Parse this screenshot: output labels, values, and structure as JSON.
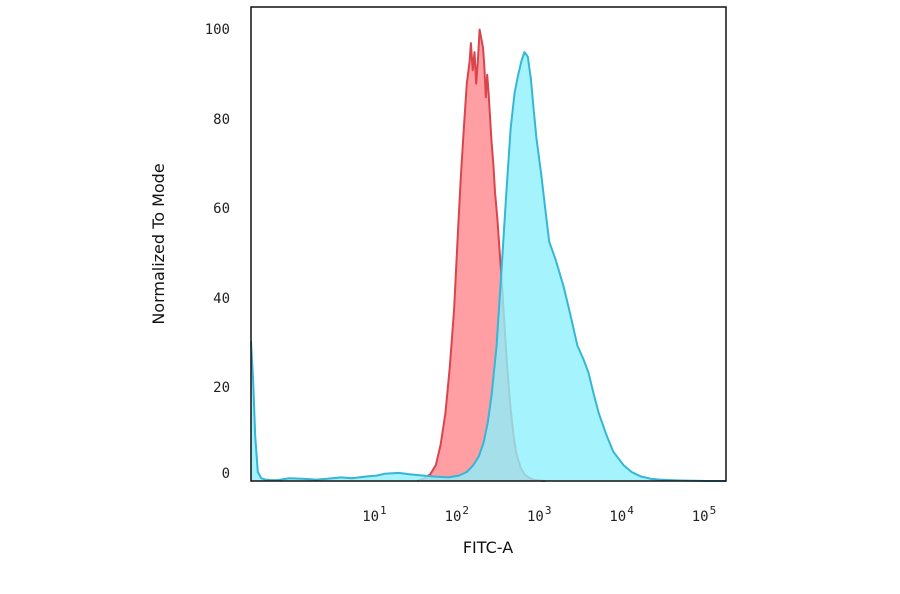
{
  "chart_data": {
    "type": "area",
    "title": "",
    "xlabel": "FITC-A",
    "ylabel": "Normalized To Mode",
    "x_scale": "log",
    "xlim": [
      0.24,
      140000
    ],
    "ylim": [
      0,
      105
    ],
    "y_ticks": [
      0,
      20,
      40,
      60,
      80,
      100
    ],
    "x_ticks": [
      {
        "value": 10,
        "base": "10",
        "exp": "1"
      },
      {
        "value": 100,
        "base": "10",
        "exp": "2"
      },
      {
        "value": 1000,
        "base": "10",
        "exp": "3"
      },
      {
        "value": 10000,
        "base": "10",
        "exp": "4"
      },
      {
        "value": 100000,
        "base": "10",
        "exp": "5"
      }
    ],
    "grid": false,
    "legend": "none",
    "series": [
      {
        "color_fill": "#ff9a9e",
        "color_line": "#d9454c",
        "x": [
          25,
          30,
          36,
          42,
          48,
          55,
          62,
          70,
          78,
          85,
          92,
          100,
          108,
          112,
          118,
          124,
          130,
          137,
          143,
          150,
          157,
          163,
          170,
          177,
          184,
          192,
          200,
          210,
          220,
          235,
          250,
          270,
          290,
          310,
          340,
          370,
          400,
          450,
          500,
          560,
          620,
          680,
          760,
          820,
          900
        ],
        "y": [
          0,
          0.5,
          1.5,
          3.5,
          8,
          15,
          25,
          38,
          55,
          68,
          78,
          88,
          93,
          97,
          91,
          95,
          88,
          94,
          100,
          98,
          96,
          92,
          85,
          90,
          86,
          80,
          75,
          70,
          64,
          58,
          51,
          42,
          33,
          25,
          16,
          10,
          6,
          3,
          1.5,
          0.8,
          0.4,
          0.2,
          0.1,
          0.05,
          0
        ]
      },
      {
        "color_fill": "#8ff0fb",
        "color_line": "#35b6d6",
        "x": [
          0.24,
          0.255,
          0.27,
          0.29,
          0.32,
          0.36,
          0.42,
          0.5,
          0.7,
          1,
          1.5,
          2,
          3,
          4,
          6,
          8,
          10,
          15,
          20,
          30,
          40,
          60,
          80,
          100,
          120,
          140,
          160,
          180,
          200,
          230,
          260,
          300,
          340,
          380,
          420,
          460,
          500,
          550,
          600,
          650,
          700,
          800,
          900,
          1000,
          1200,
          1500,
          1800,
          2200,
          2600,
          3000,
          3500,
          4000,
          5000,
          6000,
          8000,
          10000,
          13000,
          17000,
          22000,
          30000,
          40000,
          60000,
          80000,
          100000,
          140000
        ],
        "y": [
          31,
          22,
          10,
          2,
          0.6,
          0.3,
          0.2,
          0.2,
          0.6,
          0.5,
          0.3,
          0.5,
          0.8,
          0.6,
          1.0,
          1.2,
          1.6,
          1.8,
          1.5,
          1.2,
          1.0,
          0.8,
          1.2,
          2.0,
          3.5,
          5.5,
          8.5,
          13,
          19,
          30,
          45,
          63,
          78,
          86,
          90,
          93,
          95,
          94,
          89,
          82,
          76,
          68,
          60,
          53,
          49,
          43,
          37,
          30,
          27,
          24,
          19,
          15,
          10,
          6.5,
          3.5,
          2.0,
          1.0,
          0.5,
          0.3,
          0.2,
          0.1,
          0.05,
          0,
          0,
          0
        ]
      }
    ]
  }
}
